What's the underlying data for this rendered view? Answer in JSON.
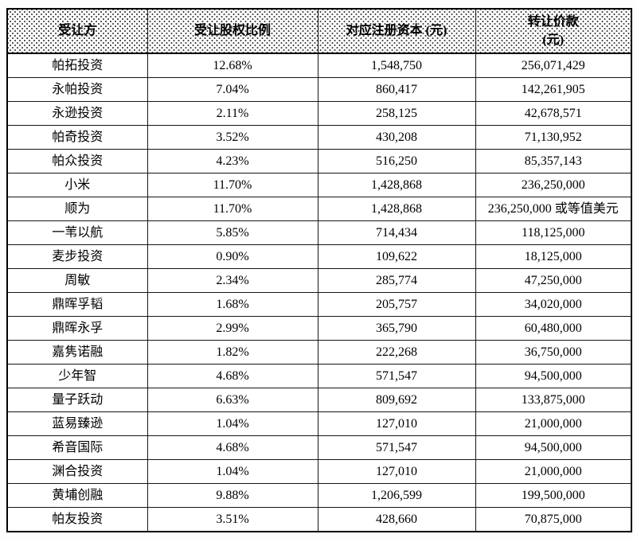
{
  "table": {
    "headers": [
      "受让方",
      "受让股权比例",
      "对应注册资本 (元)",
      "转让价款\n(元)"
    ],
    "style": {
      "border_color": "#000000",
      "header_pattern": "halftone-dots",
      "text_color": "#000000",
      "background": "#ffffff"
    },
    "rows": [
      {
        "name": "帕拓投资",
        "ratio": "12.68%",
        "capital": "1,548,750",
        "price": "256,071,429"
      },
      {
        "name": "永帕投资",
        "ratio": "7.04%",
        "capital": "860,417",
        "price": "142,261,905"
      },
      {
        "name": "永逊投资",
        "ratio": "2.11%",
        "capital": "258,125",
        "price": "42,678,571"
      },
      {
        "name": "帕奇投资",
        "ratio": "3.52%",
        "capital": "430,208",
        "price": "71,130,952"
      },
      {
        "name": "帕众投资",
        "ratio": "4.23%",
        "capital": "516,250",
        "price": "85,357,143"
      },
      {
        "name": "小米",
        "ratio": "11.70%",
        "capital": "1,428,868",
        "price": "236,250,000"
      },
      {
        "name": "顺为",
        "ratio": "11.70%",
        "capital": "1,428,868",
        "price": "236,250,000 或等值美元"
      },
      {
        "name": "一苇以航",
        "ratio": "5.85%",
        "capital": "714,434",
        "price": "118,125,000"
      },
      {
        "name": "麦步投资",
        "ratio": "0.90%",
        "capital": "109,622",
        "price": "18,125,000"
      },
      {
        "name": "周敏",
        "ratio": "2.34%",
        "capital": "285,774",
        "price": "47,250,000"
      },
      {
        "name": "鼎晖孚韬",
        "ratio": "1.68%",
        "capital": "205,757",
        "price": "34,020,000"
      },
      {
        "name": "鼎晖永孚",
        "ratio": "2.99%",
        "capital": "365,790",
        "price": "60,480,000"
      },
      {
        "name": "嘉隽诺融",
        "ratio": "1.82%",
        "capital": "222,268",
        "price": "36,750,000"
      },
      {
        "name": "少年智",
        "ratio": "4.68%",
        "capital": "571,547",
        "price": "94,500,000"
      },
      {
        "name": "量子跃动",
        "ratio": "6.63%",
        "capital": "809,692",
        "price": "133,875,000"
      },
      {
        "name": "蓝易臻逊",
        "ratio": "1.04%",
        "capital": "127,010",
        "price": "21,000,000"
      },
      {
        "name": "希音国际",
        "ratio": "4.68%",
        "capital": "571,547",
        "price": "94,500,000"
      },
      {
        "name": "渊合投资",
        "ratio": "1.04%",
        "capital": "127,010",
        "price": "21,000,000"
      },
      {
        "name": "黄埔创融",
        "ratio": "9.88%",
        "capital": "1,206,599",
        "price": "199,500,000"
      },
      {
        "name": "帕友投资",
        "ratio": "3.51%",
        "capital": "428,660",
        "price": "70,875,000"
      }
    ]
  }
}
